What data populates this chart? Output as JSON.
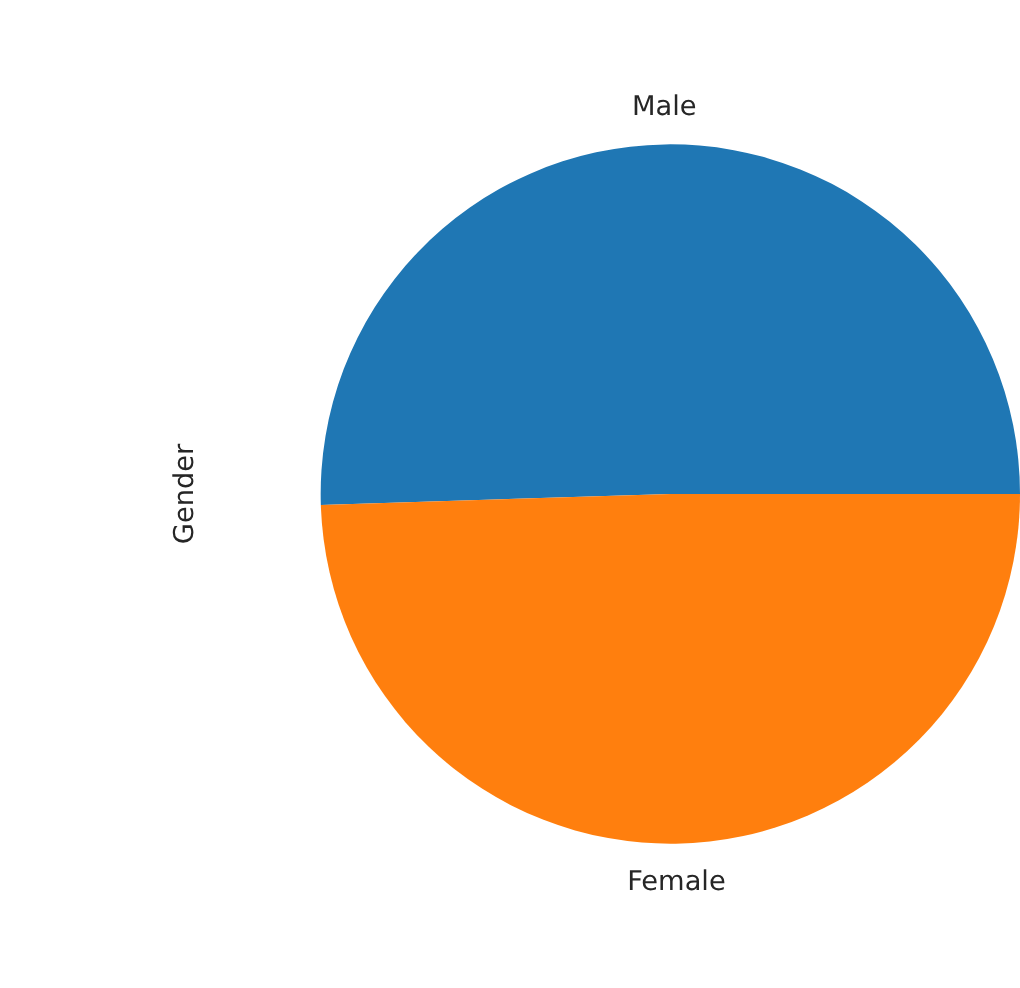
{
  "chart_data": {
    "type": "pie",
    "ylabel": "Gender",
    "categories": [
      "Male",
      "Female"
    ],
    "values": [
      50.5,
      49.5
    ],
    "colors": [
      "#1f77b4",
      "#ff7f0e"
    ],
    "legend": false
  }
}
